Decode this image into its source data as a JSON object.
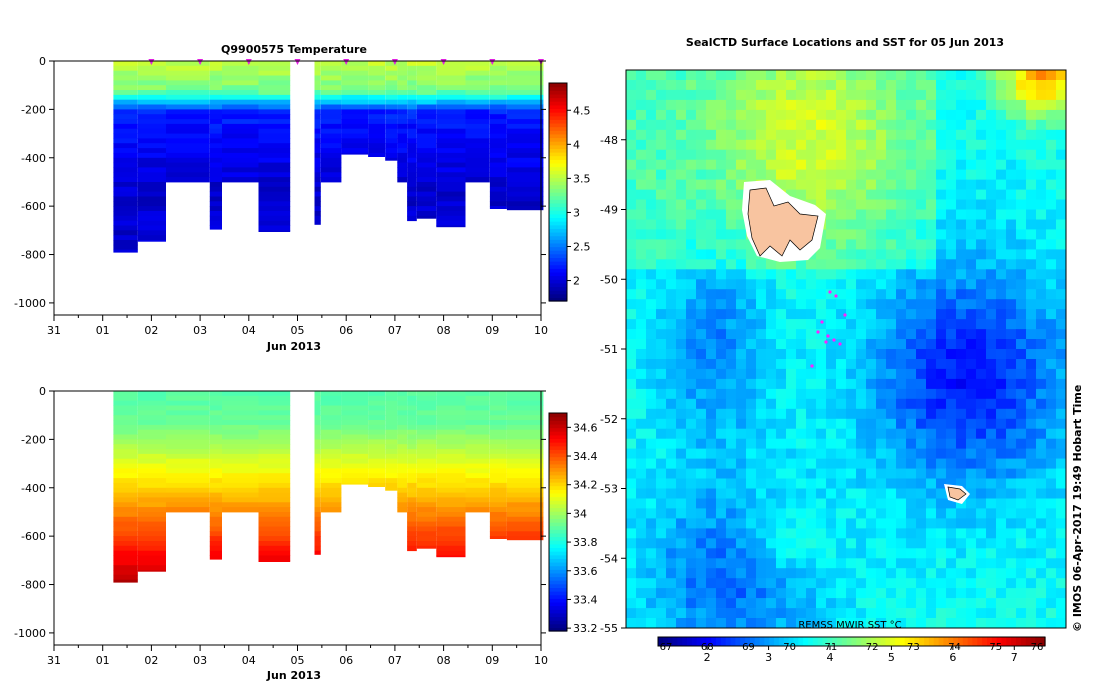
{
  "chart_data": [
    {
      "type": "heatmap",
      "title": "Q9900575  Temperature",
      "xlabel": "Jun 2013",
      "ylabel": "",
      "x_tick_labels": [
        "31",
        "01",
        "02",
        "03",
        "04",
        "05",
        "06",
        "07",
        "08",
        "09",
        "10"
      ],
      "x_days": [
        0,
        1,
        2,
        3,
        4,
        5,
        6,
        7,
        8,
        9,
        10
      ],
      "xlim": [
        0,
        10
      ],
      "ylim": [
        -1050,
        0
      ],
      "y_ticks": [
        0,
        -200,
        -400,
        -600,
        -800,
        -1000
      ],
      "y_tick_labels": [
        "0",
        "-200",
        "-400",
        "-600",
        "-800",
        "-1000"
      ],
      "colorbar_ticks": [
        2,
        2.5,
        3,
        3.5,
        4,
        4.5
      ],
      "colorbar_tick_labels": [
        "2",
        "2.5",
        "3",
        "3.5",
        "4",
        "4.5"
      ],
      "colorbar_range": [
        1.7,
        4.9
      ],
      "surface_markers": [
        2,
        3,
        4,
        5,
        6,
        7,
        8,
        9,
        10
      ],
      "profiles": [
        {
          "t0": 1.22,
          "t1": 1.72,
          "depth": 790
        },
        {
          "t0": 1.72,
          "t1": 2.3,
          "depth": 745
        },
        {
          "t0": 2.3,
          "t1": 3.2,
          "depth": 500
        },
        {
          "t0": 3.2,
          "t1": 3.45,
          "depth": 695
        },
        {
          "t0": 3.45,
          "t1": 4.2,
          "depth": 500
        },
        {
          "t0": 4.2,
          "t1": 4.85,
          "depth": 705
        },
        {
          "t0": 5.35,
          "t1": 5.48,
          "depth": 675
        },
        {
          "t0": 5.48,
          "t1": 5.9,
          "depth": 500
        },
        {
          "t0": 5.9,
          "t1": 6.45,
          "depth": 385
        },
        {
          "t0": 6.45,
          "t1": 6.8,
          "depth": 395
        },
        {
          "t0": 6.8,
          "t1": 7.05,
          "depth": 410
        },
        {
          "t0": 7.05,
          "t1": 7.25,
          "depth": 500
        },
        {
          "t0": 7.25,
          "t1": 7.45,
          "depth": 660
        },
        {
          "t0": 7.45,
          "t1": 7.85,
          "depth": 650
        },
        {
          "t0": 7.85,
          "t1": 8.45,
          "depth": 685
        },
        {
          "t0": 8.45,
          "t1": 8.95,
          "depth": 500
        },
        {
          "t0": 8.95,
          "t1": 9.3,
          "depth": 610
        },
        {
          "t0": 9.3,
          "t1": 10.05,
          "depth": 615
        }
      ]
    },
    {
      "type": "heatmap",
      "title": "",
      "xlabel": "Jun 2013",
      "ylabel": "",
      "x_tick_labels": [
        "31",
        "01",
        "02",
        "03",
        "04",
        "05",
        "06",
        "07",
        "08",
        "09",
        "10"
      ],
      "x_days": [
        0,
        1,
        2,
        3,
        4,
        5,
        6,
        7,
        8,
        9,
        10
      ],
      "xlim": [
        0,
        10
      ],
      "ylim": [
        -1050,
        0
      ],
      "y_ticks": [
        0,
        -200,
        -400,
        -600,
        -800,
        -1000
      ],
      "y_tick_labels": [
        "0",
        "-200",
        "-400",
        "-600",
        "-800",
        "-1000"
      ],
      "colorbar_ticks": [
        33.2,
        33.4,
        33.6,
        33.8,
        34,
        34.2,
        34.4,
        34.6
      ],
      "colorbar_tick_labels": [
        "33.2",
        "33.4",
        "33.6",
        "33.8",
        "34",
        "34.2",
        "34.4",
        "34.6"
      ],
      "colorbar_range": [
        33.18,
        34.7
      ]
    },
    {
      "type": "heatmap",
      "title": "SealCTD Surface Locations and SST for 05 Jun 2013",
      "y_ticks": [
        -48,
        -49,
        -50,
        -51,
        -52,
        -53,
        -54,
        -55
      ],
      "y_tick_labels": [
        "-48",
        "-49",
        "-50",
        "-51",
        "-52",
        "-53",
        "-54",
        "-55"
      ],
      "ylim": [
        -55.0,
        -47.0
      ],
      "colorbar_label": "REMSS MWIR SST °C",
      "colorbar_ticks": [
        2,
        3,
        4,
        5,
        6,
        7
      ],
      "colorbar_tick_labels": [
        "2",
        "3",
        "4",
        "5",
        "6",
        "7"
      ],
      "colorbar_range": [
        1.2,
        7.5
      ],
      "overlapping_tick_labels": [
        "67",
        "68",
        "69",
        "70",
        "71",
        "72",
        "73",
        "74",
        "75",
        "76"
      ]
    }
  ],
  "credit": "© IMOS 06-Apr-2017 19:49 Hobart Time"
}
